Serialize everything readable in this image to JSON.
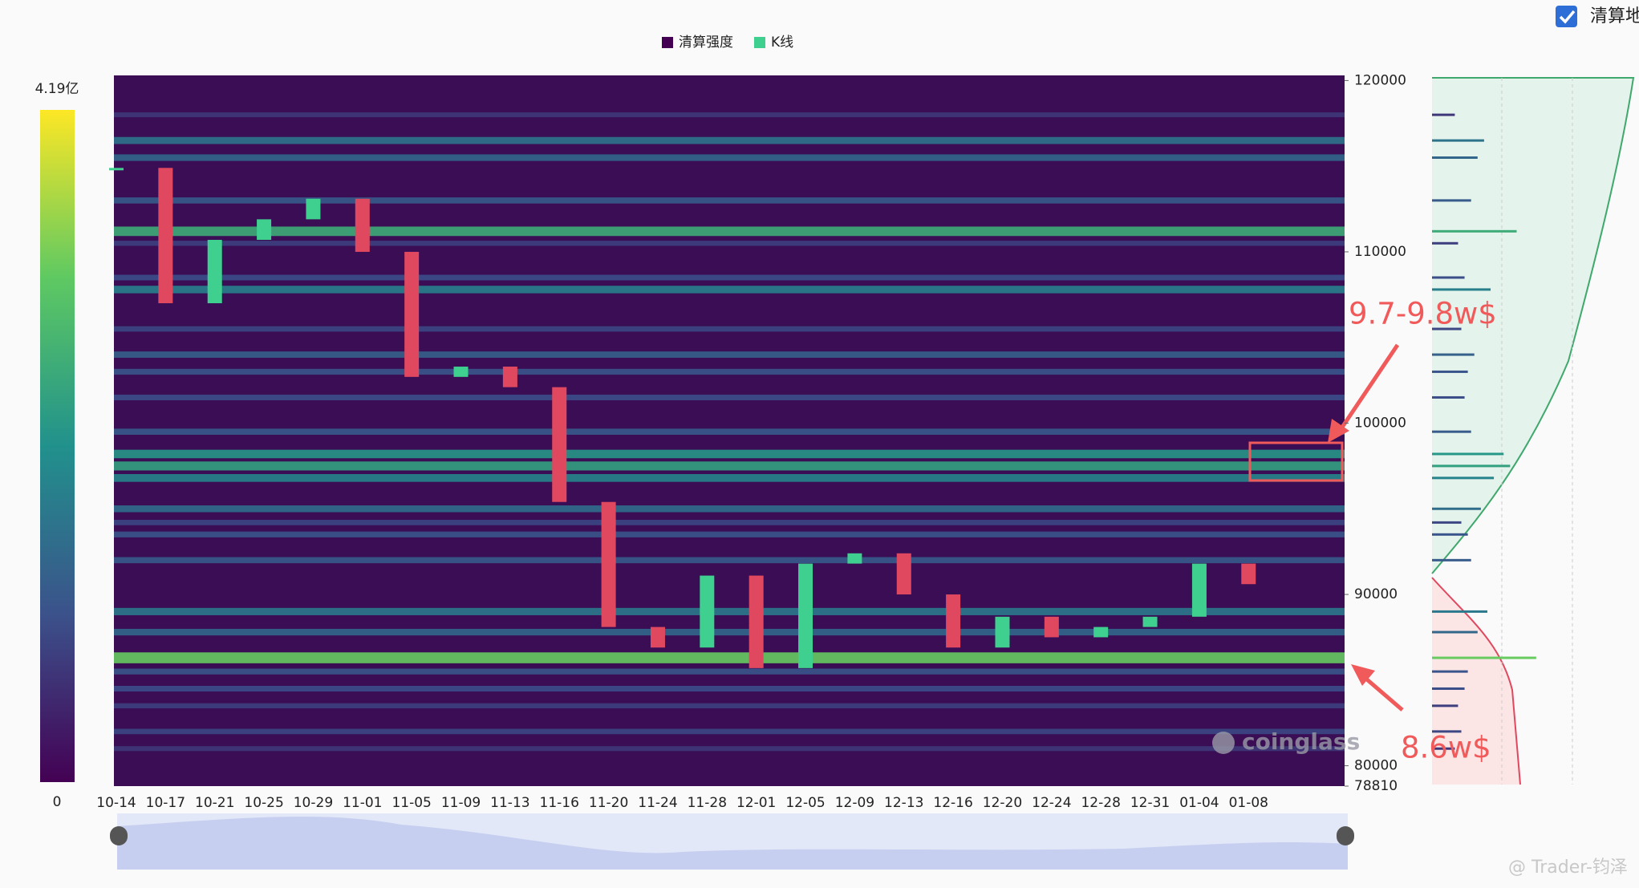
{
  "chart_data": {
    "type": "heatmap",
    "toggle": "清算地",
    "categories": [
      "10-14",
      "10-17",
      "10-21",
      "10-25",
      "10-29",
      "11-01",
      "11-05",
      "11-09",
      "11-13",
      "11-16",
      "11-20",
      "11-24",
      "11-28",
      "12-01",
      "12-05",
      "12-09",
      "12-13",
      "12-16",
      "12-20",
      "12-24",
      "12-28",
      "12-31",
      "01-04",
      "01-08"
    ],
    "series": [
      {
        "name": "K线",
        "color": "#3fcf8e",
        "down_color": "#e0485f",
        "values": [
          114900,
          107000,
          110700,
          111900,
          113100,
          110000,
          102700,
          103300,
          102100,
          95400,
          88100,
          86900,
          91100,
          85700,
          91800,
          92400,
          90000,
          86900,
          88700,
          87500,
          88100,
          88700,
          91800,
          90600
        ]
      }
    ],
    "heatmap": {
      "name": "清算强度",
      "levels": [
        118000,
        116500,
        115500,
        113000,
        111200,
        110500,
        108500,
        107800,
        105500,
        104000,
        103000,
        101500,
        99500,
        98200,
        97500,
        96800,
        95000,
        94200,
        93500,
        92000,
        89000,
        87800,
        86300,
        85500,
        84500,
        83500,
        82000,
        81000
      ],
      "values": [
        0.7,
        1.6,
        1.4,
        1.2,
        2.6,
        0.8,
        1.0,
        1.8,
        0.9,
        1.3,
        1.1,
        1.0,
        1.2,
        2.2,
        2.4,
        1.9,
        1.5,
        0.9,
        1.1,
        1.2,
        1.7,
        1.4,
        3.2,
        1.1,
        1.0,
        0.8,
        0.9,
        0.7
      ]
    },
    "colorbar": {
      "lim": [
        0,
        4.19
      ],
      "ticks": [
        {
          "value": 4.19,
          "label": "4.19亿"
        },
        0
      ],
      "colors": [
        "#440154",
        "#3b528b",
        "#21918c",
        "#5ec962",
        "#fde725"
      ]
    },
    "ylim": [
      78810,
      120300
    ],
    "yticks": [
      120000,
      110000,
      100000,
      90000,
      80000,
      78810
    ],
    "annotations": [
      {
        "text": "9.7-9.8w$"
      },
      {
        "text": "8.6w$"
      }
    ],
    "annotation_color": "#f05a5a",
    "watermarks": [
      "coinglass",
      "@ Trader-钧泽"
    ]
  }
}
